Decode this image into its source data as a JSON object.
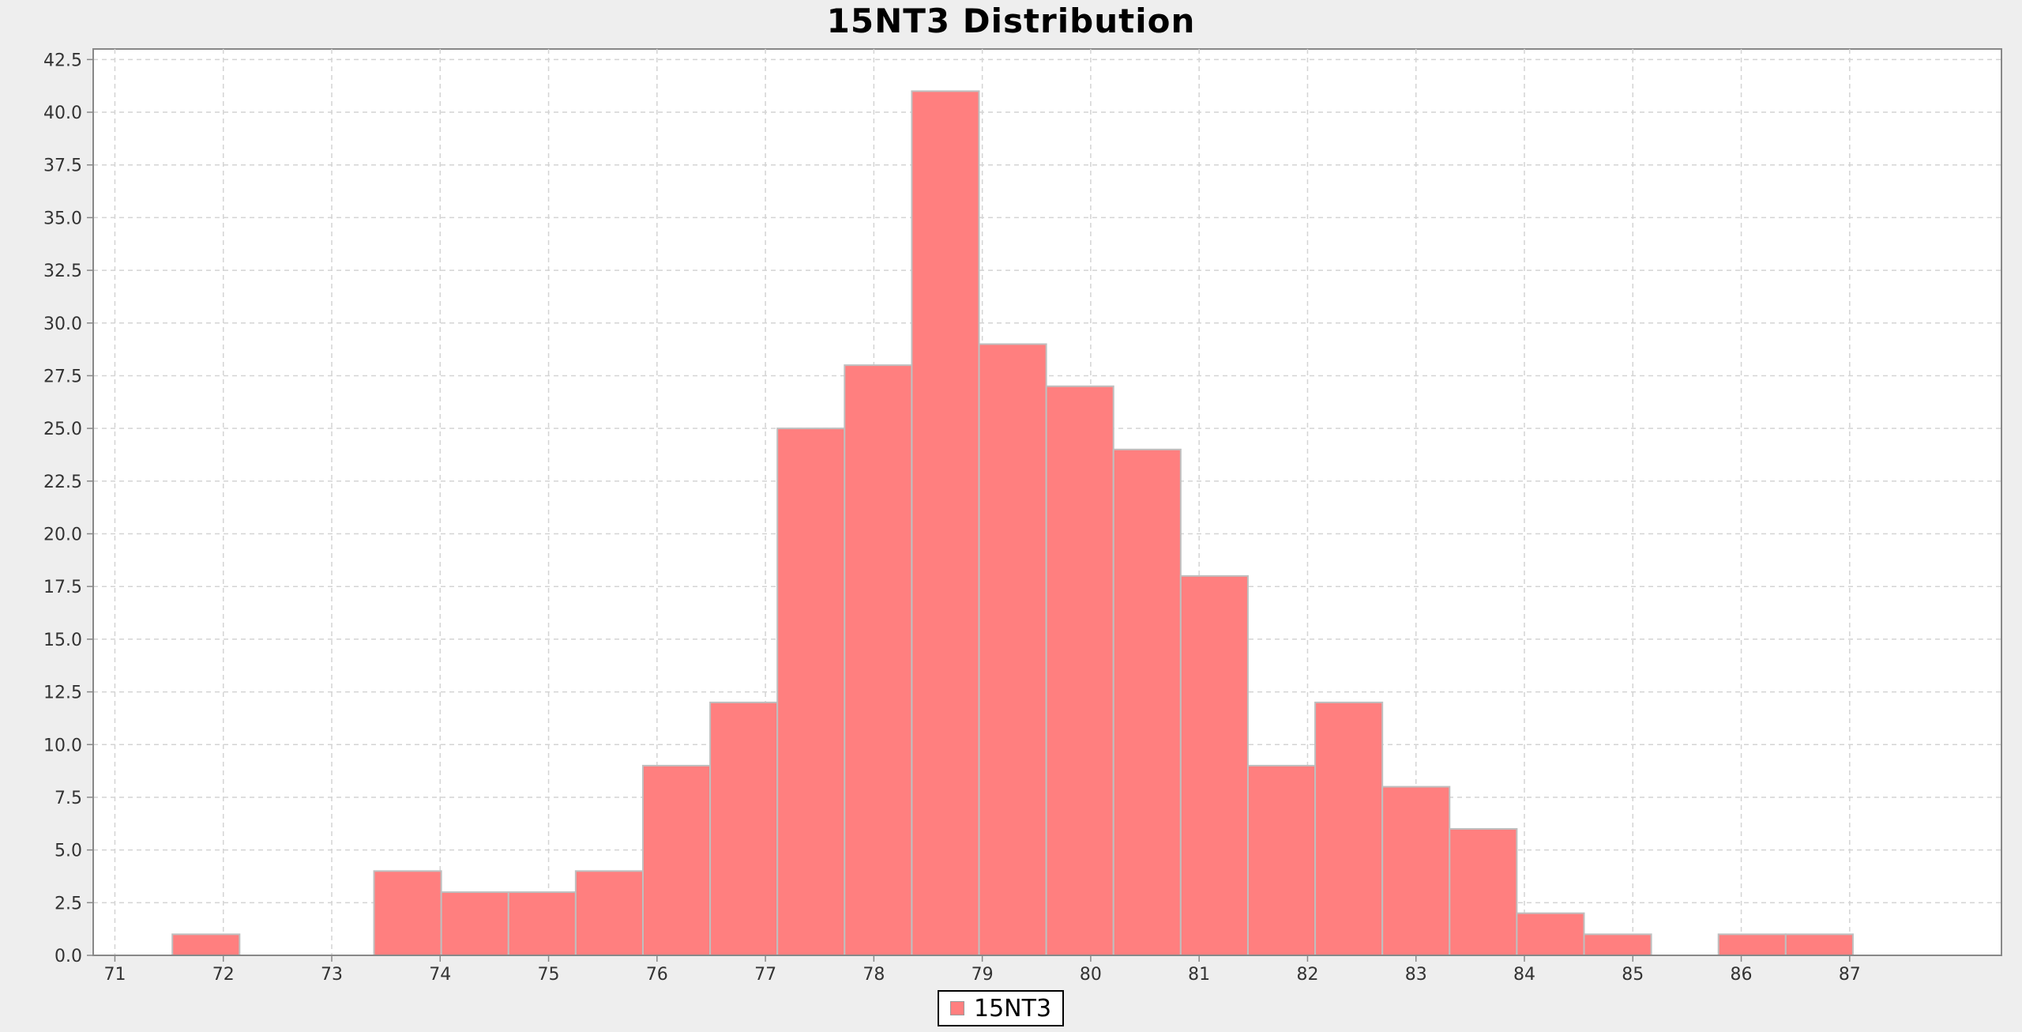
{
  "chart_data": {
    "type": "bar",
    "title": "15NT3 Distribution",
    "xlabel": "",
    "ylabel": "",
    "xlim": [
      70.8,
      88.4
    ],
    "ylim": [
      0,
      43
    ],
    "x_ticks": [
      71,
      72,
      73,
      74,
      75,
      76,
      77,
      78,
      79,
      80,
      81,
      82,
      83,
      84,
      85,
      86,
      87
    ],
    "y_ticks": [
      0,
      2.5,
      5,
      7.5,
      10,
      12.5,
      15,
      17.5,
      20,
      22.5,
      25,
      27.5,
      30,
      32.5,
      35,
      37.5,
      40,
      42.5
    ],
    "grid": true,
    "legend": "bottom-center",
    "bin_width": 0.62,
    "series": [
      {
        "name": "15NT3",
        "color": "#ff7f7f",
        "bins": [
          {
            "start": 71.53,
            "count": 1
          },
          {
            "start": 73.39,
            "count": 4
          },
          {
            "start": 74.01,
            "count": 3
          },
          {
            "start": 74.63,
            "count": 3
          },
          {
            "start": 75.25,
            "count": 4
          },
          {
            "start": 75.87,
            "count": 9
          },
          {
            "start": 76.49,
            "count": 12
          },
          {
            "start": 77.11,
            "count": 25
          },
          {
            "start": 77.73,
            "count": 28
          },
          {
            "start": 78.35,
            "count": 41
          },
          {
            "start": 78.97,
            "count": 29
          },
          {
            "start": 79.59,
            "count": 27
          },
          {
            "start": 80.21,
            "count": 24
          },
          {
            "start": 80.83,
            "count": 18
          },
          {
            "start": 81.45,
            "count": 9
          },
          {
            "start": 82.07,
            "count": 12
          },
          {
            "start": 82.69,
            "count": 8
          },
          {
            "start": 83.31,
            "count": 6
          },
          {
            "start": 83.93,
            "count": 2
          },
          {
            "start": 84.55,
            "count": 1
          },
          {
            "start": 85.79,
            "count": 1
          },
          {
            "start": 86.41,
            "count": 1
          }
        ]
      }
    ]
  }
}
